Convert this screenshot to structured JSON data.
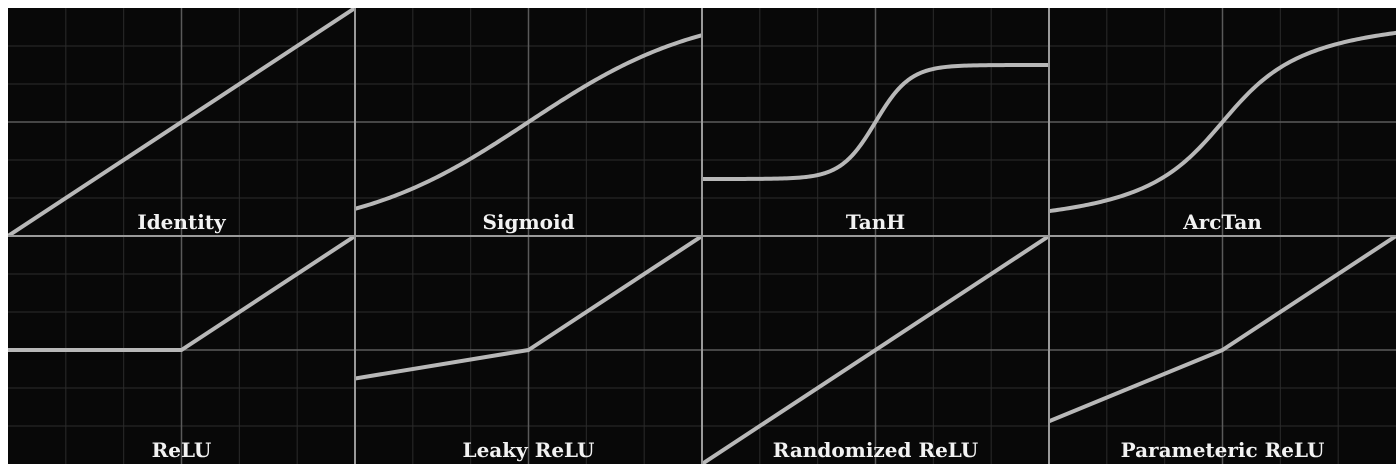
{
  "style": {
    "background": "#080808",
    "grid_color": "#2b2b2b",
    "axis_color": "#5a5a5a",
    "divider_color": "#9a9a9a",
    "curve_color": "#b8b8b8",
    "title_color": "#f2f2f2"
  },
  "chart_data": [
    {
      "type": "line",
      "title": "Identity",
      "xlim": [
        -2,
        2
      ],
      "ylim": [
        -2,
        2
      ],
      "grid": true,
      "series": [
        {
          "x": [
            -2,
            2
          ],
          "y": [
            -2,
            2
          ]
        }
      ]
    },
    {
      "type": "line",
      "title": "Sigmoid",
      "xlim": [
        -2,
        2
      ],
      "ylim": [
        -2,
        2
      ],
      "grid": true,
      "series": [
        {
          "function": "sigmoid"
        }
      ]
    },
    {
      "type": "line",
      "title": "TanH",
      "xlim": [
        -2,
        2
      ],
      "ylim": [
        -2,
        2
      ],
      "grid": true,
      "series": [
        {
          "function": "tanh"
        }
      ]
    },
    {
      "type": "line",
      "title": "ArcTan",
      "xlim": [
        -2,
        2
      ],
      "ylim": [
        -2,
        2
      ],
      "grid": true,
      "series": [
        {
          "function": "arctan"
        }
      ]
    },
    {
      "type": "line",
      "title": "ReLU",
      "xlim": [
        -2,
        2
      ],
      "ylim": [
        -2,
        2
      ],
      "grid": true,
      "series": [
        {
          "x": [
            -2,
            0,
            2
          ],
          "y": [
            0,
            0,
            2
          ]
        }
      ]
    },
    {
      "type": "line",
      "title": "Leaky ReLU",
      "xlim": [
        -2,
        2
      ],
      "ylim": [
        -2,
        2
      ],
      "grid": true,
      "series": [
        {
          "x": [
            -2,
            0,
            2
          ],
          "y": [
            -0.5,
            0,
            2
          ]
        }
      ]
    },
    {
      "type": "line",
      "title": "Randomized ReLU",
      "xlim": [
        -2,
        2
      ],
      "ylim": [
        -2,
        2
      ],
      "grid": true,
      "series": [
        {
          "x": [
            -2,
            0,
            2
          ],
          "y": [
            -2,
            0,
            2
          ]
        }
      ]
    },
    {
      "type": "line",
      "title": "Parameteric ReLU",
      "xlim": [
        -2,
        2
      ],
      "ylim": [
        -2,
        2
      ],
      "grid": true,
      "series": [
        {
          "x": [
            -2,
            0,
            2
          ],
          "y": [
            -1.25,
            0,
            2
          ]
        }
      ]
    }
  ]
}
